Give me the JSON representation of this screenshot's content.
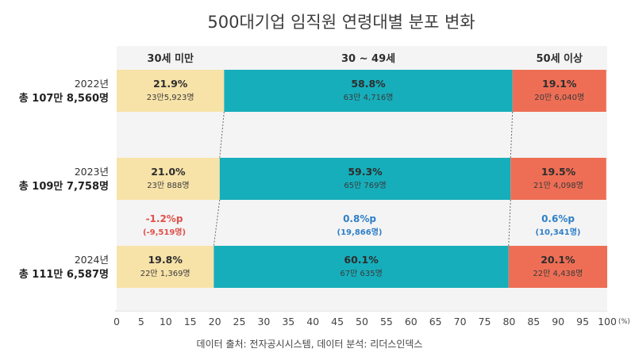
{
  "title": "500대기업 임직원 연령대별 분포 변화",
  "source": "데이터 출처: 전자공시시스템, 데이터 분석: 리더스인덱스",
  "colors": {
    "under30": "#F7E2A8",
    "mid": "#16AEBB",
    "over50": "#EE6E55",
    "negative": "#E0504A",
    "positive": "#2F7FC7"
  },
  "chart_data": {
    "type": "bar",
    "stacked": true,
    "orientation": "horizontal",
    "title": "500대기업 임직원 연령대별 분포 변화",
    "xlim": [
      0,
      100
    ],
    "xticks": [
      0,
      5,
      10,
      15,
      20,
      25,
      30,
      35,
      40,
      45,
      50,
      55,
      60,
      65,
      70,
      75,
      80,
      85,
      90,
      95,
      100
    ],
    "xunit": "(%)",
    "categories_header": [
      "30세 미만",
      "30 ~ 49세",
      "50세 이상"
    ],
    "rows": [
      {
        "year": "2022년",
        "total": "총 107만 8,560명",
        "segments": [
          {
            "value": 21.9,
            "pct": "21.9%",
            "count": "23만5,923명"
          },
          {
            "value": 58.8,
            "pct": "58.8%",
            "count": "63만 4,716명"
          },
          {
            "value": 19.1,
            "pct": "19.1%",
            "count": "20만 6,040명"
          }
        ]
      },
      {
        "year": "2023년",
        "total": "총 109만 7,758명",
        "segments": [
          {
            "value": 21.0,
            "pct": "21.0%",
            "count": "23만 888명"
          },
          {
            "value": 59.3,
            "pct": "59.3%",
            "count": "65만 769명"
          },
          {
            "value": 19.5,
            "pct": "19.5%",
            "count": "21만 4,098명"
          }
        ]
      },
      {
        "year": "2024년",
        "total": "총 111만 6,587명",
        "segments": [
          {
            "value": 19.8,
            "pct": "19.8%",
            "count": "22만 1,369명"
          },
          {
            "value": 60.1,
            "pct": "60.1%",
            "count": "67만 635명"
          },
          {
            "value": 20.1,
            "pct": "20.1%",
            "count": "22만 4,438명"
          }
        ]
      }
    ],
    "changes": [
      {
        "pct": "-1.2%p",
        "count": "(-9,519명)",
        "sign": "negative"
      },
      {
        "pct": "0.8%p",
        "count": "(19,866명)",
        "sign": "positive"
      },
      {
        "pct": "0.6%p",
        "count": "(10,341명)",
        "sign": "positive"
      }
    ]
  }
}
